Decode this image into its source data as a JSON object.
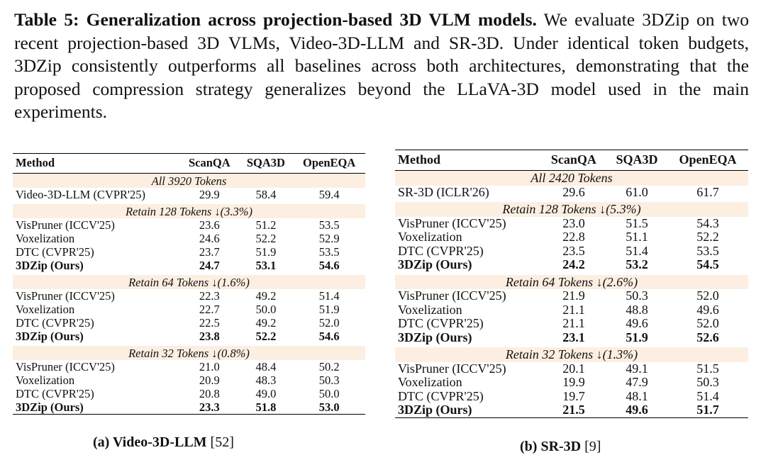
{
  "caption": {
    "label": "Table 5: Generalization across projection-based 3D VLM models.",
    "text": "We evaluate 3DZip on two recent projection-based 3D VLMs, Video-3D-LLM and SR-3D. Under identical token budgets, 3DZip consistently outperforms all baselines across both architectures, demonstrating that the proposed compression strategy generalizes beyond the LLaVA-3D model used in the main experiments."
  },
  "table_a": {
    "columns": [
      "Method",
      "ScanQA",
      "SQA3D",
      "OpenEQA"
    ],
    "groups": [
      {
        "title": "All 3920 Tokens",
        "rows": [
          {
            "method": "Video-3D-LLM (CVPR'25)",
            "values": [
              "29.9",
              "58.4",
              "59.4"
            ]
          }
        ]
      },
      {
        "title": "Retain 128 Tokens ↓(3.3%)",
        "rows": [
          {
            "method": "VisPruner (ICCV'25)",
            "values": [
              "23.6",
              "51.2",
              "53.5"
            ]
          },
          {
            "method": "Voxelization",
            "values": [
              "24.6",
              "52.2",
              "52.9"
            ]
          },
          {
            "method": "DTC (CVPR'25)",
            "values": [
              "23.7",
              "51.9",
              "53.5"
            ]
          },
          {
            "method": "3DZip (Ours)",
            "values": [
              "24.7",
              "53.1",
              "54.6"
            ]
          }
        ]
      },
      {
        "title": "Retain 64 Tokens ↓(1.6%)",
        "rows": [
          {
            "method": "VisPruner (ICCV'25)",
            "values": [
              "22.3",
              "49.2",
              "51.4"
            ]
          },
          {
            "method": "Voxelization",
            "values": [
              "22.7",
              "50.0",
              "51.9"
            ]
          },
          {
            "method": "DTC (CVPR'25)",
            "values": [
              "22.5",
              "49.2",
              "52.0"
            ]
          },
          {
            "method": "3DZip (Ours)",
            "values": [
              "23.8",
              "52.2",
              "54.6"
            ]
          }
        ]
      },
      {
        "title": "Retain 32 Tokens ↓(0.8%)",
        "rows": [
          {
            "method": "VisPruner (ICCV'25)",
            "values": [
              "21.0",
              "48.4",
              "50.2"
            ]
          },
          {
            "method": "Voxelization",
            "values": [
              "20.9",
              "48.3",
              "50.3"
            ]
          },
          {
            "method": "DTC (CVPR'25)",
            "values": [
              "20.8",
              "49.0",
              "50.0"
            ]
          },
          {
            "method": "3DZip (Ours)",
            "values": [
              "23.3",
              "51.8",
              "53.0"
            ]
          }
        ]
      }
    ],
    "subcaption_label": "(a) Video-3D-LLM",
    "subcaption_ref": "[52]"
  },
  "table_b": {
    "columns": [
      "Method",
      "ScanQA",
      "SQA3D",
      "OpenEQA"
    ],
    "groups": [
      {
        "title": "All 2420 Tokens",
        "rows": [
          {
            "method": "SR-3D (ICLR'26)",
            "values": [
              "29.6",
              "61.0",
              "61.7"
            ]
          }
        ]
      },
      {
        "title": "Retain 128 Tokens ↓(5.3%)",
        "rows": [
          {
            "method": "VisPruner (ICCV'25)",
            "values": [
              "23.0",
              "51.5",
              "54.3"
            ]
          },
          {
            "method": "Voxelization",
            "values": [
              "22.8",
              "51.1",
              "52.2"
            ]
          },
          {
            "method": "DTC (CVPR'25)",
            "values": [
              "23.5",
              "51.4",
              "53.5"
            ]
          },
          {
            "method": "3DZip (Ours)",
            "values": [
              "24.2",
              "53.2",
              "54.5"
            ]
          }
        ]
      },
      {
        "title": "Retain 64 Tokens ↓(2.6%)",
        "rows": [
          {
            "method": "VisPruner (ICCV'25)",
            "values": [
              "21.9",
              "50.3",
              "52.0"
            ]
          },
          {
            "method": "Voxelization",
            "values": [
              "21.1",
              "48.8",
              "49.6"
            ]
          },
          {
            "method": "DTC (CVPR'25)",
            "values": [
              "21.1",
              "49.6",
              "52.0"
            ]
          },
          {
            "method": "3DZip (Ours)",
            "values": [
              "23.1",
              "51.9",
              "52.6"
            ]
          }
        ]
      },
      {
        "title": "Retain 32 Tokens ↓(1.3%)",
        "rows": [
          {
            "method": "VisPruner (ICCV'25)",
            "values": [
              "20.1",
              "49.1",
              "51.5"
            ]
          },
          {
            "method": "Voxelization",
            "values": [
              "19.9",
              "47.9",
              "50.3"
            ]
          },
          {
            "method": "DTC (CVPR'25)",
            "values": [
              "19.7",
              "48.1",
              "51.4"
            ]
          },
          {
            "method": "3DZip (Ours)",
            "values": [
              "21.5",
              "49.6",
              "51.7"
            ]
          }
        ]
      }
    ],
    "subcaption_label": "(b) SR-3D",
    "subcaption_ref": "[9]"
  }
}
